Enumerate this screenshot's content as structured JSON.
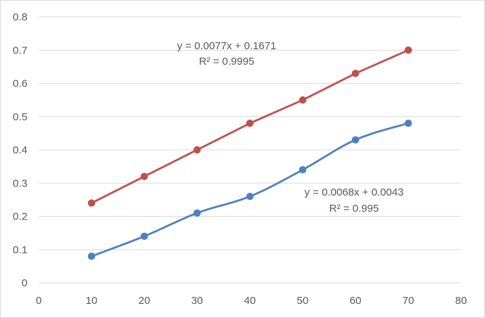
{
  "chart_data": {
    "type": "line",
    "title": "",
    "xlabel": "",
    "ylabel": "",
    "xlim": [
      0,
      80
    ],
    "ylim": [
      0,
      0.8
    ],
    "grid": "horizontal",
    "legend": "none",
    "x_ticks": [
      "0",
      "10",
      "20",
      "30",
      "40",
      "50",
      "60",
      "70",
      "80"
    ],
    "y_ticks": [
      "0",
      "0.1",
      "0.2",
      "0.3",
      "0.4",
      "0.5",
      "0.6",
      "0.7",
      "0.8"
    ],
    "x": [
      10,
      20,
      30,
      40,
      50,
      60,
      70
    ],
    "series": [
      {
        "values": [
          0.24,
          0.32,
          0.4,
          0.48,
          0.55,
          0.63,
          0.7
        ],
        "color": "#c0504d",
        "style": "straight",
        "annotation": [
          "y = 0.0077x + 0.1671",
          "R² = 0.9995"
        ]
      },
      {
        "values": [
          0.08,
          0.14,
          0.21,
          0.26,
          0.34,
          0.43,
          0.48
        ],
        "color": "#4f81bd",
        "style": "smooth",
        "annotation": [
          "y = 0.0068x + 0.0043",
          "R² = 0.995"
        ]
      }
    ],
    "colors": {
      "grid": "#d9d9d9",
      "axis_text": "#595959"
    }
  }
}
